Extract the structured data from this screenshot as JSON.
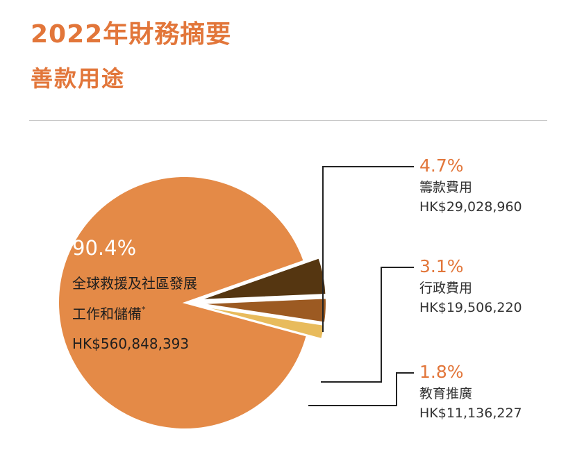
{
  "header": {
    "title": "2022年財務摘要",
    "subtitle": "善款用途"
  },
  "colors": {
    "accent": "#e2763a",
    "slice_main": "#e48a47",
    "slice_fundraising": "#553611",
    "slice_admin": "#9c5a22",
    "slice_education": "#e8bb5c",
    "leader": "#222222"
  },
  "chart_data": {
    "type": "pie",
    "slices": [
      {
        "key": "main",
        "percent_label": "90.4%",
        "value": 90.4,
        "label_lines": [
          "全球救援及社區發展",
          "工作和儲備"
        ],
        "footnote_mark": "*",
        "amount": "HK$560,848,393",
        "color": "#e48a47"
      },
      {
        "key": "fundraising",
        "percent_label": "4.7%",
        "value": 4.7,
        "label_lines": [
          "籌款費用"
        ],
        "amount": "HK$29,028,960",
        "color": "#553611"
      },
      {
        "key": "admin",
        "percent_label": "3.1%",
        "value": 3.1,
        "label_lines": [
          "行政費用"
        ],
        "amount": "HK$19,506,220",
        "color": "#9c5a22"
      },
      {
        "key": "education",
        "percent_label": "1.8%",
        "value": 1.8,
        "label_lines": [
          "教育推廣"
        ],
        "amount": "HK$11,136,227",
        "color": "#e8bb5c"
      }
    ]
  }
}
